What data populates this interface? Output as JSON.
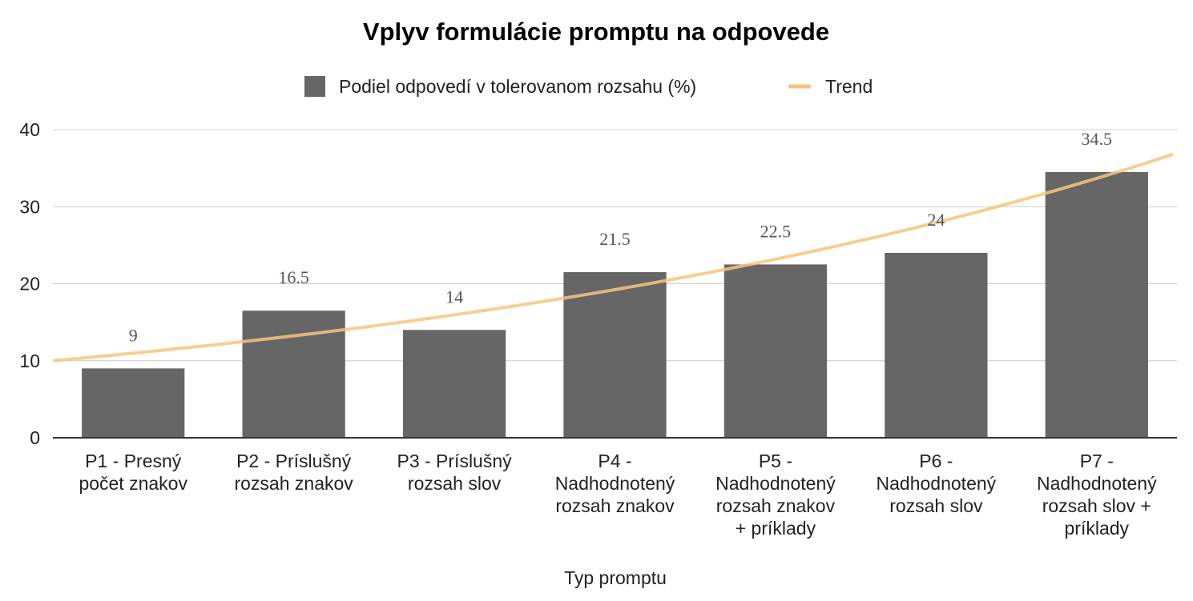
{
  "chart_data": {
    "type": "bar",
    "title": "Vplyv formulácie promptu na odpovede",
    "xlabel": "Typ promptu",
    "ylabel": "",
    "ylim": [
      0,
      40
    ],
    "yticks": [
      0,
      10,
      20,
      30,
      40
    ],
    "categories": [
      [
        "P1 - Presný",
        "počet znakov"
      ],
      [
        "P2 - Príslušný",
        "rozsah znakov"
      ],
      [
        "P3 - Príslušný",
        "rozsah slov"
      ],
      [
        "P4 -",
        "Nadhodnotený",
        "rozsah znakov"
      ],
      [
        "P5 -",
        "Nadhodnotený",
        "rozsah znakov",
        "+ príklady"
      ],
      [
        "P6 -",
        "Nadhodnotený",
        "rozsah slov"
      ],
      [
        "P7 -",
        "Nadhodnotený",
        "rozsah slov +",
        "príklady"
      ]
    ],
    "series": [
      {
        "name": "Podiel odpovedí v tolerovanom rozsahu (%)",
        "values": [
          9,
          16.5,
          14,
          21.5,
          22.5,
          24,
          34.5
        ],
        "data_labels": [
          "9",
          "16.5",
          "14",
          "21.5",
          "22.5",
          "24",
          "34.5"
        ],
        "color": "#666666"
      }
    ],
    "trend": {
      "name": "Trend",
      "kind": "exponential",
      "start_value": 10,
      "end_value": 36.8,
      "color": "#f6c57f"
    },
    "legend_position": "top-center",
    "grid": true
  }
}
